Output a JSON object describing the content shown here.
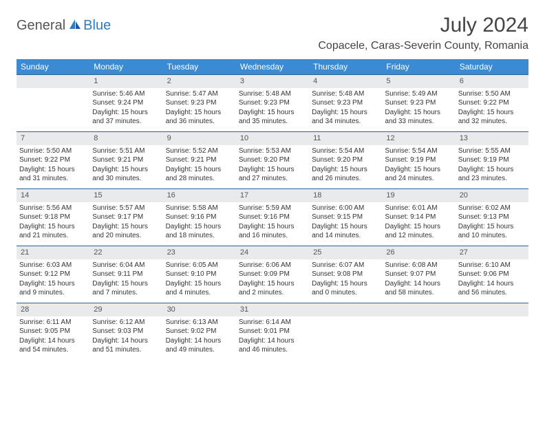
{
  "logo": {
    "part1": "General",
    "part2": "Blue"
  },
  "title": "July 2024",
  "location": "Copacele, Caras-Severin County, Romania",
  "colors": {
    "header_bg": "#3b8bd4",
    "header_text": "#ffffff",
    "daynum_bg": "#e8eaec",
    "row_border": "#2d5f8f",
    "body_text": "#333333",
    "logo_gray": "#555555",
    "logo_blue": "#2d7bc4"
  },
  "weekdays": [
    "Sunday",
    "Monday",
    "Tuesday",
    "Wednesday",
    "Thursday",
    "Friday",
    "Saturday"
  ],
  "weeks": [
    [
      {
        "n": "",
        "sr": "",
        "ss": "",
        "dl": ""
      },
      {
        "n": "1",
        "sr": "Sunrise: 5:46 AM",
        "ss": "Sunset: 9:24 PM",
        "dl": "Daylight: 15 hours and 37 minutes."
      },
      {
        "n": "2",
        "sr": "Sunrise: 5:47 AM",
        "ss": "Sunset: 9:23 PM",
        "dl": "Daylight: 15 hours and 36 minutes."
      },
      {
        "n": "3",
        "sr": "Sunrise: 5:48 AM",
        "ss": "Sunset: 9:23 PM",
        "dl": "Daylight: 15 hours and 35 minutes."
      },
      {
        "n": "4",
        "sr": "Sunrise: 5:48 AM",
        "ss": "Sunset: 9:23 PM",
        "dl": "Daylight: 15 hours and 34 minutes."
      },
      {
        "n": "5",
        "sr": "Sunrise: 5:49 AM",
        "ss": "Sunset: 9:23 PM",
        "dl": "Daylight: 15 hours and 33 minutes."
      },
      {
        "n": "6",
        "sr": "Sunrise: 5:50 AM",
        "ss": "Sunset: 9:22 PM",
        "dl": "Daylight: 15 hours and 32 minutes."
      }
    ],
    [
      {
        "n": "7",
        "sr": "Sunrise: 5:50 AM",
        "ss": "Sunset: 9:22 PM",
        "dl": "Daylight: 15 hours and 31 minutes."
      },
      {
        "n": "8",
        "sr": "Sunrise: 5:51 AM",
        "ss": "Sunset: 9:21 PM",
        "dl": "Daylight: 15 hours and 30 minutes."
      },
      {
        "n": "9",
        "sr": "Sunrise: 5:52 AM",
        "ss": "Sunset: 9:21 PM",
        "dl": "Daylight: 15 hours and 28 minutes."
      },
      {
        "n": "10",
        "sr": "Sunrise: 5:53 AM",
        "ss": "Sunset: 9:20 PM",
        "dl": "Daylight: 15 hours and 27 minutes."
      },
      {
        "n": "11",
        "sr": "Sunrise: 5:54 AM",
        "ss": "Sunset: 9:20 PM",
        "dl": "Daylight: 15 hours and 26 minutes."
      },
      {
        "n": "12",
        "sr": "Sunrise: 5:54 AM",
        "ss": "Sunset: 9:19 PM",
        "dl": "Daylight: 15 hours and 24 minutes."
      },
      {
        "n": "13",
        "sr": "Sunrise: 5:55 AM",
        "ss": "Sunset: 9:19 PM",
        "dl": "Daylight: 15 hours and 23 minutes."
      }
    ],
    [
      {
        "n": "14",
        "sr": "Sunrise: 5:56 AM",
        "ss": "Sunset: 9:18 PM",
        "dl": "Daylight: 15 hours and 21 minutes."
      },
      {
        "n": "15",
        "sr": "Sunrise: 5:57 AM",
        "ss": "Sunset: 9:17 PM",
        "dl": "Daylight: 15 hours and 20 minutes."
      },
      {
        "n": "16",
        "sr": "Sunrise: 5:58 AM",
        "ss": "Sunset: 9:16 PM",
        "dl": "Daylight: 15 hours and 18 minutes."
      },
      {
        "n": "17",
        "sr": "Sunrise: 5:59 AM",
        "ss": "Sunset: 9:16 PM",
        "dl": "Daylight: 15 hours and 16 minutes."
      },
      {
        "n": "18",
        "sr": "Sunrise: 6:00 AM",
        "ss": "Sunset: 9:15 PM",
        "dl": "Daylight: 15 hours and 14 minutes."
      },
      {
        "n": "19",
        "sr": "Sunrise: 6:01 AM",
        "ss": "Sunset: 9:14 PM",
        "dl": "Daylight: 15 hours and 12 minutes."
      },
      {
        "n": "20",
        "sr": "Sunrise: 6:02 AM",
        "ss": "Sunset: 9:13 PM",
        "dl": "Daylight: 15 hours and 10 minutes."
      }
    ],
    [
      {
        "n": "21",
        "sr": "Sunrise: 6:03 AM",
        "ss": "Sunset: 9:12 PM",
        "dl": "Daylight: 15 hours and 9 minutes."
      },
      {
        "n": "22",
        "sr": "Sunrise: 6:04 AM",
        "ss": "Sunset: 9:11 PM",
        "dl": "Daylight: 15 hours and 7 minutes."
      },
      {
        "n": "23",
        "sr": "Sunrise: 6:05 AM",
        "ss": "Sunset: 9:10 PM",
        "dl": "Daylight: 15 hours and 4 minutes."
      },
      {
        "n": "24",
        "sr": "Sunrise: 6:06 AM",
        "ss": "Sunset: 9:09 PM",
        "dl": "Daylight: 15 hours and 2 minutes."
      },
      {
        "n": "25",
        "sr": "Sunrise: 6:07 AM",
        "ss": "Sunset: 9:08 PM",
        "dl": "Daylight: 15 hours and 0 minutes."
      },
      {
        "n": "26",
        "sr": "Sunrise: 6:08 AM",
        "ss": "Sunset: 9:07 PM",
        "dl": "Daylight: 14 hours and 58 minutes."
      },
      {
        "n": "27",
        "sr": "Sunrise: 6:10 AM",
        "ss": "Sunset: 9:06 PM",
        "dl": "Daylight: 14 hours and 56 minutes."
      }
    ],
    [
      {
        "n": "28",
        "sr": "Sunrise: 6:11 AM",
        "ss": "Sunset: 9:05 PM",
        "dl": "Daylight: 14 hours and 54 minutes."
      },
      {
        "n": "29",
        "sr": "Sunrise: 6:12 AM",
        "ss": "Sunset: 9:03 PM",
        "dl": "Daylight: 14 hours and 51 minutes."
      },
      {
        "n": "30",
        "sr": "Sunrise: 6:13 AM",
        "ss": "Sunset: 9:02 PM",
        "dl": "Daylight: 14 hours and 49 minutes."
      },
      {
        "n": "31",
        "sr": "Sunrise: 6:14 AM",
        "ss": "Sunset: 9:01 PM",
        "dl": "Daylight: 14 hours and 46 minutes."
      },
      {
        "n": "",
        "sr": "",
        "ss": "",
        "dl": ""
      },
      {
        "n": "",
        "sr": "",
        "ss": "",
        "dl": ""
      },
      {
        "n": "",
        "sr": "",
        "ss": "",
        "dl": ""
      }
    ]
  ]
}
